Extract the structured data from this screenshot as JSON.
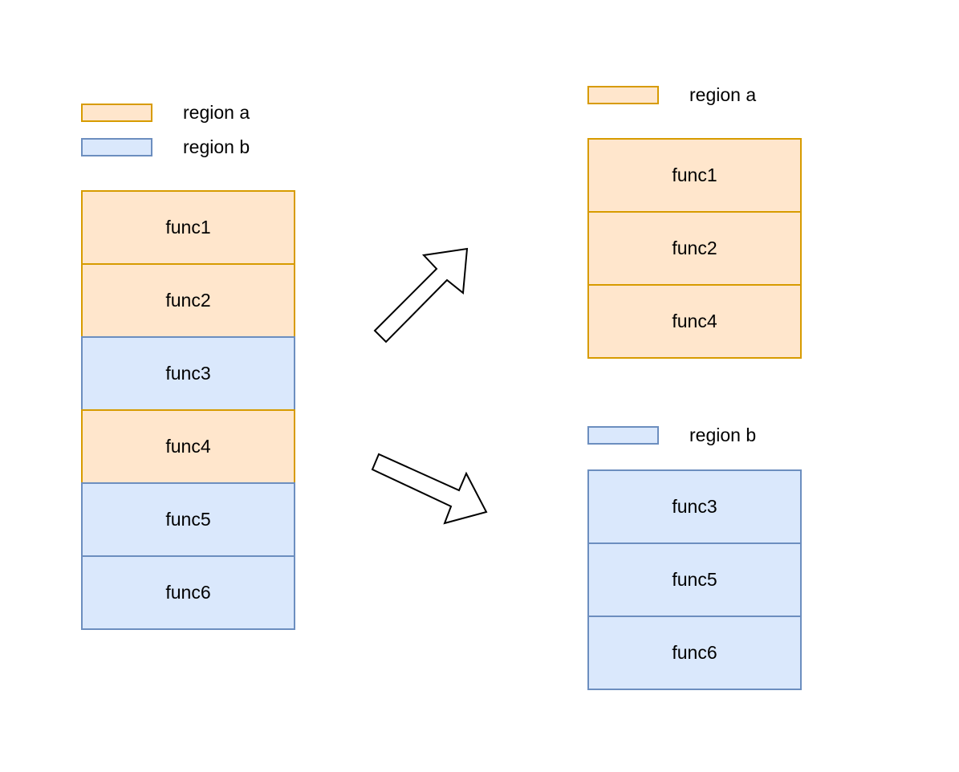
{
  "regions": {
    "a": {
      "label": "region a",
      "fill": "#ffe6cc",
      "stroke": "#d79b00"
    },
    "b": {
      "label": "region b",
      "fill": "#dae8fc",
      "stroke": "#6c8ebf"
    }
  },
  "left_legend": [
    {
      "region": "a",
      "label": "region a"
    },
    {
      "region": "b",
      "label": "region b"
    }
  ],
  "left_stack": [
    {
      "label": "func1",
      "region": "a"
    },
    {
      "label": "func2",
      "region": "a"
    },
    {
      "label": "func3",
      "region": "b"
    },
    {
      "label": "func4",
      "region": "a"
    },
    {
      "label": "func5",
      "region": "b"
    },
    {
      "label": "func6",
      "region": "b"
    }
  ],
  "right_top": {
    "legend_label": "region a",
    "blocks": [
      "func1",
      "func2",
      "func4"
    ]
  },
  "right_bottom": {
    "legend_label": "region b",
    "blocks": [
      "func3",
      "func5",
      "func6"
    ]
  },
  "arrows": [
    "up-right-arrow",
    "down-right-arrow"
  ]
}
